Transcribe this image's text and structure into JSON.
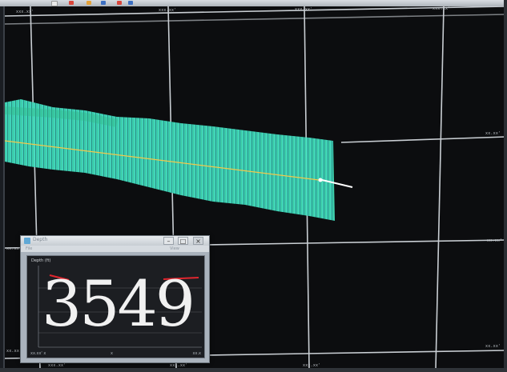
{
  "desktop": {
    "taskbar_icons": [
      "browser-icon",
      "record-icon",
      "app-icon",
      "tool-icon",
      "network-icon",
      "chart-icon"
    ]
  },
  "chart": {
    "top_labels": [
      "xxx.xx'",
      "xxx.xx'",
      "xxx.xx'"
    ],
    "right_labels": [
      "xx.xx'",
      "xx.xx'",
      "xx.xx'"
    ],
    "left_labels": [
      "xx.xx'",
      "xx.xx'"
    ],
    "bottom_labels": [
      "xxx.xx'",
      "xxx.xx'",
      "xxx.xx'",
      "xxx.xx'"
    ],
    "colors": {
      "background": "#0c0d0f",
      "grid": "#c9ced3",
      "swath_a": "#40e6d0",
      "swath_b": "#3fd29a",
      "track": "#f4c84a",
      "heading": "#ffffff"
    }
  },
  "depth_window": {
    "title": "Depth",
    "menu": [
      "File",
      "View"
    ],
    "panel_label": "Depth (ft)",
    "value": "3549",
    "status_left": "xx.xx' x",
    "status_mid": "x",
    "status_right": "xx.x"
  }
}
